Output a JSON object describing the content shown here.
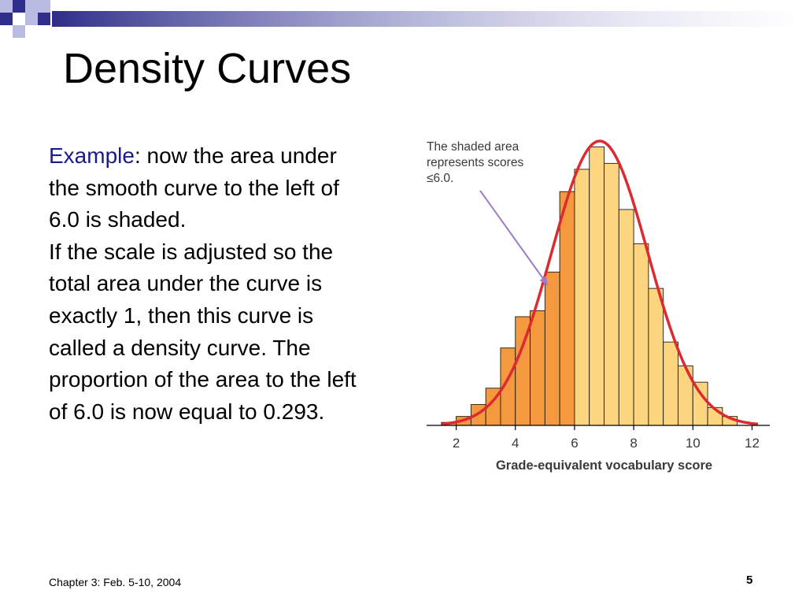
{
  "slide": {
    "title": "Density Curves",
    "body": {
      "keyword": "Example",
      "sentence1": ":  now the area under the smooth curve to the left of 6.0 is shaded.",
      "sentence2": "If the scale is adjusted so the total area under the curve is exactly 1, then this curve is called a density curve.  The proportion of the area to the left of 6.0 is now equal to 0.293."
    },
    "footer": "Chapter 3: Feb. 5-10, 2004",
    "page_number": "5",
    "colors": {
      "banner_dark": "#2e2e8a",
      "banner_light": "#b8bce0",
      "keyword": "#1a1a8c",
      "bar_shaded": "#f5993f",
      "bar_unshaded": "#fdd57e",
      "curve": "#dd2a30",
      "arrow": "#a07cc8"
    }
  },
  "chart_data": {
    "type": "bar",
    "annotation": "The shaded area represents scores ≤6.0.",
    "xlabel": "Grade-equivalent vocabulary score",
    "xlim": [
      1.0,
      12.6
    ],
    "x_ticks": [
      2,
      4,
      6,
      8,
      10,
      12
    ],
    "bin_width": 0.5,
    "shaded_upper_bound": 6.0,
    "bins": [
      {
        "x0": 1.5,
        "height": 0.2
      },
      {
        "x0": 2.0,
        "height": 0.6
      },
      {
        "x0": 2.5,
        "height": 1.4
      },
      {
        "x0": 3.0,
        "height": 2.5
      },
      {
        "x0": 3.5,
        "height": 5.2
      },
      {
        "x0": 4.0,
        "height": 7.3
      },
      {
        "x0": 4.5,
        "height": 7.7
      },
      {
        "x0": 5.0,
        "height": 10.3
      },
      {
        "x0": 5.5,
        "height": 15.7
      },
      {
        "x0": 6.0,
        "height": 17.2
      },
      {
        "x0": 6.5,
        "height": 18.7
      },
      {
        "x0": 7.0,
        "height": 17.6
      },
      {
        "x0": 7.5,
        "height": 14.5
      },
      {
        "x0": 8.0,
        "height": 12.2
      },
      {
        "x0": 8.5,
        "height": 9.2
      },
      {
        "x0": 9.0,
        "height": 5.6
      },
      {
        "x0": 9.5,
        "height": 4.0
      },
      {
        "x0": 10.0,
        "height": 2.9
      },
      {
        "x0": 10.5,
        "height": 1.2
      },
      {
        "x0": 11.0,
        "height": 0.6
      }
    ],
    "curve": {
      "mean": 6.85,
      "sd": 1.63,
      "peak": 19.1
    }
  }
}
